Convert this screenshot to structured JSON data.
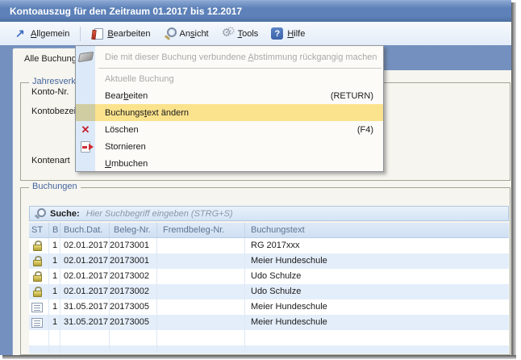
{
  "window": {
    "title": "Kontoauszug für den Zeitraum 01.2017 bis 12.2017"
  },
  "menubar": {
    "items": [
      {
        "name": "allgemein",
        "icon": "arrow-ne",
        "pre": "",
        "key": "A",
        "post": "llgemein",
        "sep_after": true
      },
      {
        "name": "bearbeiten",
        "icon": "edit-doc",
        "pre": "",
        "key": "B",
        "post": "earbeiten",
        "sep_after": false
      },
      {
        "name": "ansicht",
        "icon": "magnifier",
        "pre": "An",
        "key": "s",
        "post": "icht",
        "sep_after": false
      },
      {
        "name": "tools",
        "icon": "gears",
        "pre": "",
        "key": "T",
        "post": "ools",
        "sep_after": false
      },
      {
        "name": "hilfe",
        "icon": "help",
        "pre": "",
        "key": "H",
        "post": "ilfe",
        "sep_after": false
      }
    ]
  },
  "tab": {
    "label": "Alle Buchungen"
  },
  "groups": {
    "jahresverkehr": {
      "label": "Jahresverkehrszahlen",
      "fields": [
        "Konto-Nr.",
        "Kontobezeichnung",
        "Kontenart"
      ]
    },
    "buchungen": {
      "label": "Buchungen"
    }
  },
  "search": {
    "icon": "search-icon",
    "label": "Suche:",
    "placeholder": "Hier Suchbegriff eingeben (STRG+S)"
  },
  "table": {
    "columns": [
      "ST",
      "B",
      "Buch.Dat.",
      "Beleg-Nr.",
      "Fremdbeleg-Nr.",
      "Buchungstext"
    ],
    "rows": [
      {
        "icon": "lock",
        "b": "1",
        "date": "02.01.2017",
        "beleg": "20173001",
        "fremd": "",
        "text": "RG 2017xxx"
      },
      {
        "icon": "lock",
        "b": "1",
        "date": "02.01.2017",
        "beleg": "20173001",
        "fremd": "",
        "text": "Meier Hundeschule"
      },
      {
        "icon": "lock",
        "b": "1",
        "date": "02.01.2017",
        "beleg": "20173002",
        "fremd": "",
        "text": "Udo Schulze"
      },
      {
        "icon": "lock",
        "b": "1",
        "date": "02.01.2017",
        "beleg": "20173002",
        "fremd": "",
        "text": "Udo Schulze"
      },
      {
        "icon": "list",
        "b": "1",
        "date": "31.05.2017",
        "beleg": "20173005",
        "fremd": "",
        "text": "Meier Hundeschule"
      },
      {
        "icon": "list",
        "b": "1",
        "date": "31.05.2017",
        "beleg": "20173005",
        "fremd": "",
        "text": "Meier Hundeschule"
      },
      {
        "icon": "",
        "b": "",
        "date": "",
        "beleg": "",
        "fremd": "",
        "text": ""
      },
      {
        "icon": "",
        "b": "",
        "date": "",
        "beleg": "",
        "fremd": "",
        "text": ""
      }
    ]
  },
  "context_menu": {
    "items": [
      {
        "name": "menu-item-abstimmung-rueckgaengig",
        "icon": "eraser",
        "pre": "Die mit dieser Buchung verbundene ",
        "key": "A",
        "post": "bstimmung rückgangig machen",
        "accel": "",
        "disabled": true,
        "highlighted": false,
        "sep_after": true,
        "tall": true
      },
      {
        "name": "menu-item-aktuelle-buchung",
        "icon": "",
        "pre": "Aktuelle Buchung",
        "key": "",
        "post": "",
        "accel": "",
        "disabled": true,
        "highlighted": false,
        "sep_after": false,
        "tall": false
      },
      {
        "name": "menu-item-bearbeiten",
        "icon": "",
        "pre": "Bear",
        "key": "b",
        "post": "eiten",
        "accel": "(RETURN)",
        "disabled": false,
        "highlighted": false,
        "sep_after": false,
        "tall": false
      },
      {
        "name": "menu-item-buchungstext-aendern",
        "icon": "",
        "pre": "Buchungs",
        "key": "t",
        "post": "ext ändern",
        "accel": "",
        "disabled": false,
        "highlighted": true,
        "sep_after": false,
        "tall": false
      },
      {
        "name": "menu-item-loeschen",
        "icon": "x",
        "pre": "Löschen",
        "key": "",
        "post": "",
        "accel": "(F4)",
        "disabled": false,
        "highlighted": false,
        "sep_after": false,
        "tall": false
      },
      {
        "name": "menu-item-stornieren",
        "icon": "storno",
        "pre": "Stornieren",
        "key": "",
        "post": "",
        "accel": "",
        "disabled": false,
        "highlighted": false,
        "sep_after": false,
        "tall": false
      },
      {
        "name": "menu-item-umbuchen",
        "icon": "",
        "pre": "",
        "key": "U",
        "post": "mbuchen",
        "accel": "",
        "disabled": false,
        "highlighted": false,
        "sep_after": false,
        "tall": false
      }
    ]
  },
  "colors": {
    "titlebar": "#5d81b8",
    "frame": "#7390bf",
    "menu_highlight": "#fbe28d",
    "menu_highlight_gutter": "#cfcda1",
    "row_alt": "#e4eefa",
    "table_header_bg": "#d6e6f6",
    "group_label": "#44659e"
  }
}
